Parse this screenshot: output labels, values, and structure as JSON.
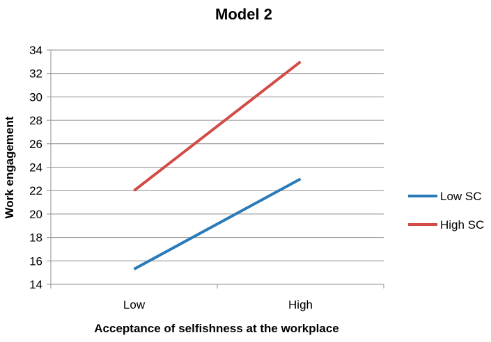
{
  "chart_data": {
    "type": "line",
    "title": "Model 2",
    "xlabel": "Acceptance of selfishness at the workplace",
    "ylabel": "Work engagement",
    "categories": [
      "Low",
      "High"
    ],
    "ylim": [
      14,
      34
    ],
    "yticks": [
      14,
      16,
      18,
      20,
      22,
      24,
      26,
      28,
      30,
      32,
      34
    ],
    "grid": true,
    "legend_position": "right",
    "series": [
      {
        "name": "Low SC",
        "values": [
          15.3,
          23.0
        ],
        "color": "#2a7ab8"
      },
      {
        "name": "High SC",
        "values": [
          22.0,
          33.0
        ],
        "color": "#d24b46"
      }
    ]
  }
}
